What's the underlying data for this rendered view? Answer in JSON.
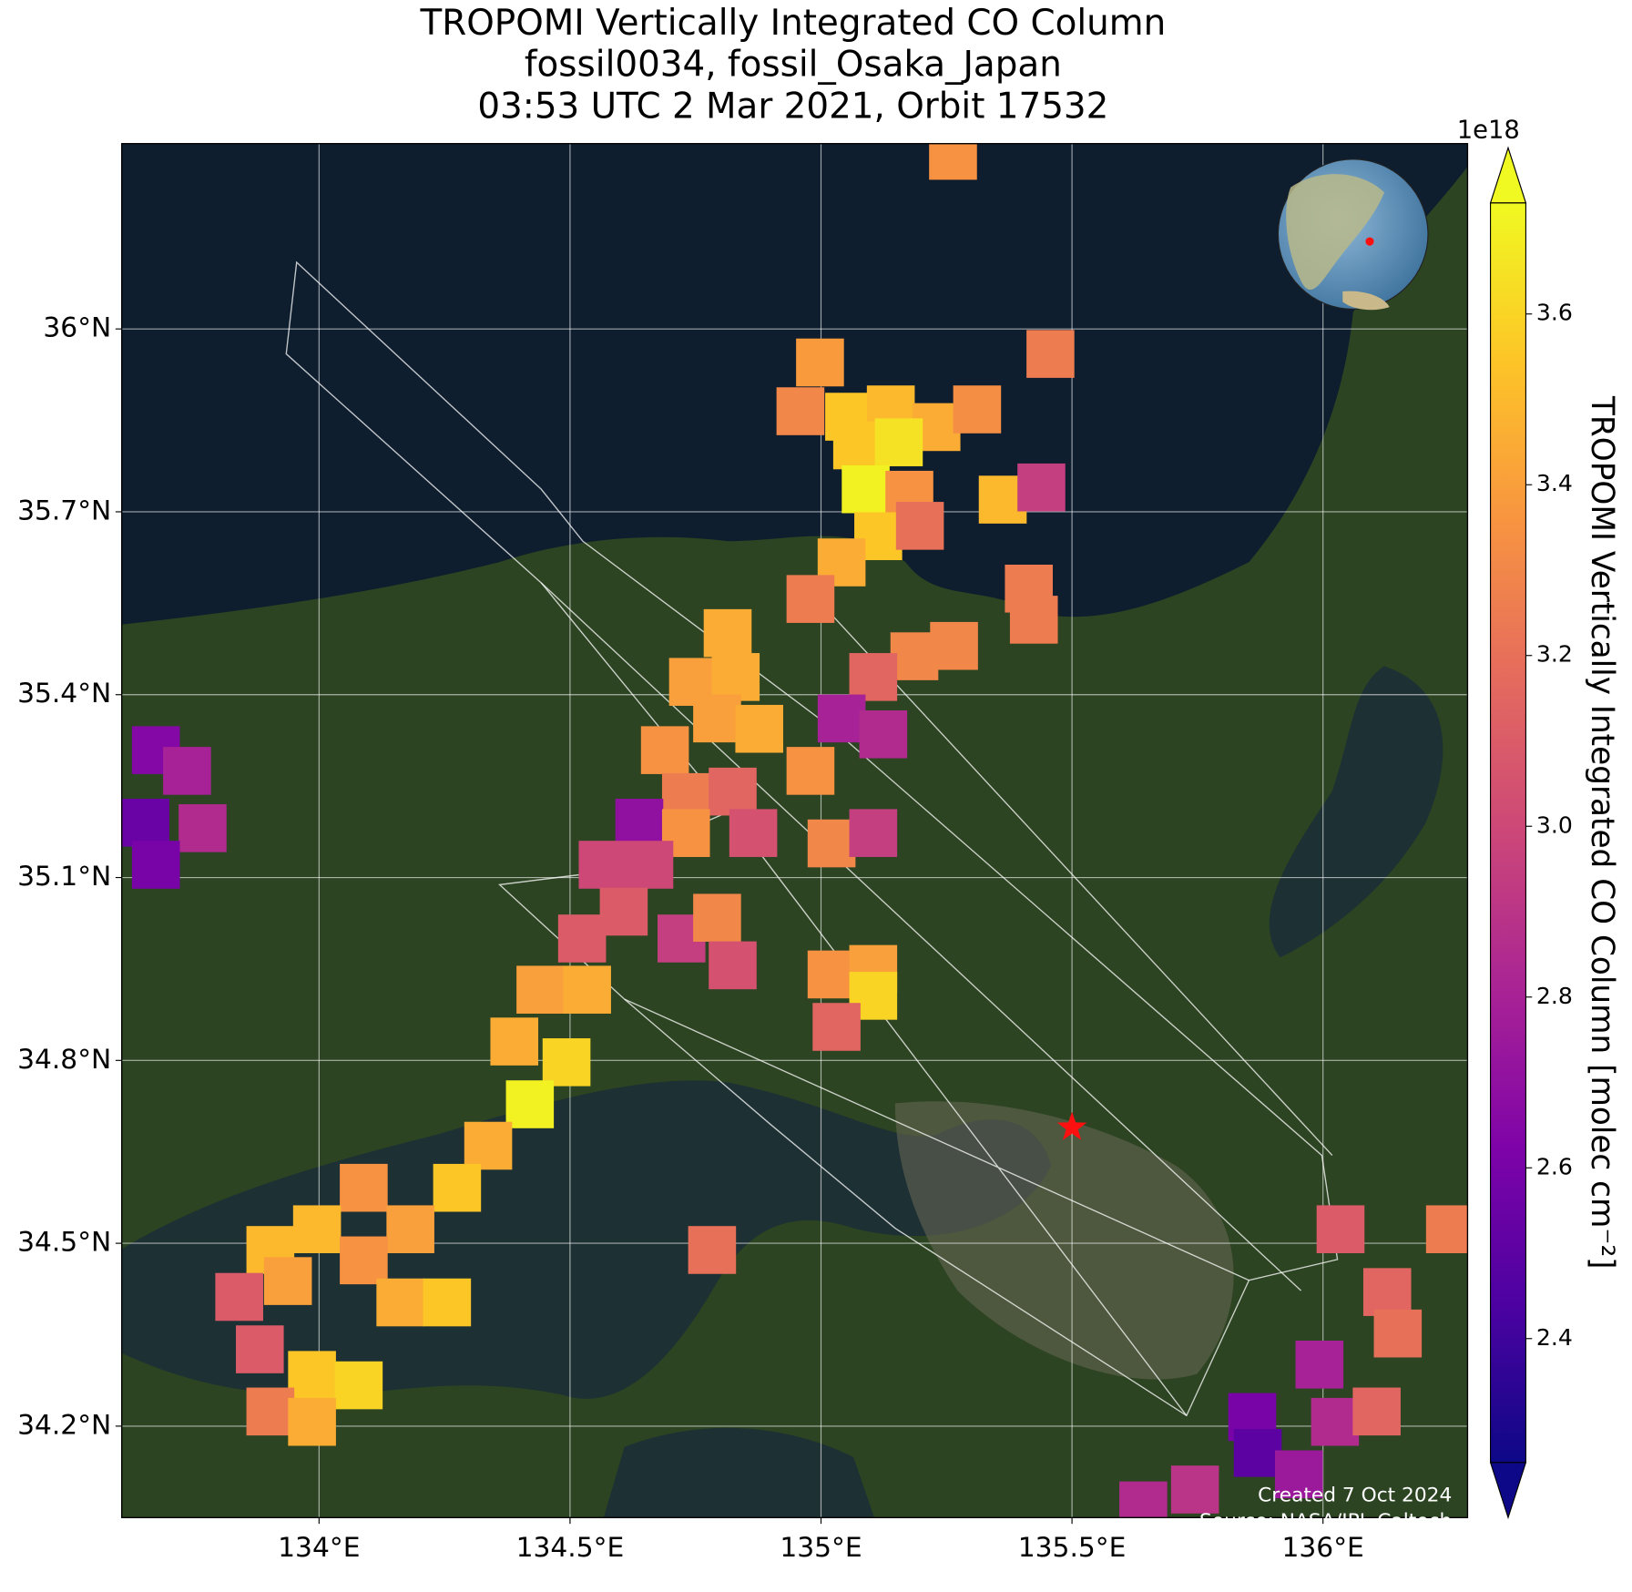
{
  "chart_data": {
    "type": "map",
    "title": [
      "TROPOMI Vertically Integrated CO Column",
      "fossil0034, fossil_Osaka_Japan",
      "03:53 UTC 2 Mar 2021, Orbit 17532"
    ],
    "xlim": [
      133.607,
      136.288
    ],
    "ylim": [
      34.05,
      36.304
    ],
    "xticks": [
      {
        "value": 134,
        "label": "134°E"
      },
      {
        "value": 134.5,
        "label": "134.5°E"
      },
      {
        "value": 135,
        "label": "135°E"
      },
      {
        "value": 135.5,
        "label": "135.5°E"
      },
      {
        "value": 136,
        "label": "136°E"
      }
    ],
    "yticks": [
      {
        "value": 34.2,
        "label": "34.2°N"
      },
      {
        "value": 34.5,
        "label": "34.5°N"
      },
      {
        "value": 34.8,
        "label": "34.8°N"
      },
      {
        "value": 35.1,
        "label": "35.1°N"
      },
      {
        "value": 35.4,
        "label": "35.4°N"
      },
      {
        "value": 35.7,
        "label": "35.7°N"
      },
      {
        "value": 36,
        "label": "36°N"
      }
    ],
    "grid": true,
    "x": [
      135.263,
      135.457,
      134.998,
      134.959,
      135.056,
      135.139,
      135.23,
      135.311,
      135.072,
      135.155,
      135.089,
      135.176,
      135.362,
      135.439,
      135.114,
      135.197,
      135.041,
      134.979,
      135.414,
      135.424,
      134.814,
      134.745,
      134.83,
      135.186,
      135.265,
      135.104,
      135.041,
      135.124,
      134.689,
      134.793,
      134.877,
      134.979,
      134.731,
      134.824,
      134.638,
      134.731,
      134.865,
      135.021,
      135.104,
      134.565,
      134.658,
      134.607,
      134.524,
      134.722,
      134.793,
      134.824,
      135.021,
      135.104,
      135.104,
      135.031,
      134.441,
      134.534,
      134.389,
      134.493,
      134.42,
      134.337,
      134.275,
      134.089,
      134.182,
      133.903,
      133.996,
      134.089,
      133.841,
      133.938,
      134.162,
      134.255,
      133.882,
      133.986,
      134.079,
      133.903,
      133.986,
      134.783,
      136.035,
      136.128,
      136.149,
      136.253,
      135.993,
      136.024,
      136.107,
      135.859,
      135.87,
      135.952,
      135.745,
      135.642,
      133.675,
      133.737,
      133.654,
      133.768,
      133.675
    ],
    "y": [
      36.284,
      35.959,
      35.945,
      35.865,
      35.856,
      35.868,
      35.839,
      35.868,
      35.809,
      35.814,
      35.737,
      35.728,
      35.72,
      35.74,
      35.66,
      35.677,
      35.617,
      35.557,
      35.574,
      35.523,
      35.501,
      35.421,
      35.429,
      35.463,
      35.48,
      35.429,
      35.361,
      35.335,
      35.309,
      35.361,
      35.344,
      35.275,
      35.232,
      35.241,
      35.19,
      35.173,
      35.173,
      35.156,
      35.173,
      35.121,
      35.121,
      35.044,
      35.0,
      35.0,
      35.034,
      34.956,
      34.941,
      34.95,
      34.906,
      34.855,
      34.916,
      34.916,
      34.831,
      34.797,
      34.728,
      34.66,
      34.591,
      34.591,
      34.523,
      34.489,
      34.523,
      34.472,
      34.412,
      34.438,
      34.403,
      34.403,
      34.326,
      34.284,
      34.267,
      34.224,
      34.207,
      34.489,
      34.523,
      34.42,
      34.352,
      34.523,
      34.301,
      34.207,
      34.224,
      34.215,
      34.156,
      34.121,
      34.096,
      34.07,
      35.309,
      35.275,
      35.19,
      35.181,
      35.121
    ],
    "values": [
      3.35,
      3.25,
      3.38,
      3.3,
      3.55,
      3.5,
      3.45,
      3.33,
      3.55,
      3.65,
      3.7,
      3.35,
      3.5,
      2.95,
      3.55,
      3.2,
      3.45,
      3.25,
      3.25,
      3.25,
      3.45,
      3.4,
      3.45,
      3.3,
      3.3,
      3.15,
      2.8,
      2.85,
      3.35,
      3.4,
      3.45,
      3.35,
      3.25,
      3.15,
      2.7,
      3.35,
      3.05,
      3.3,
      2.95,
      3.0,
      3.0,
      3.1,
      3.1,
      2.95,
      3.3,
      3.05,
      3.35,
      3.4,
      3.6,
      3.15,
      3.4,
      3.45,
      3.45,
      3.6,
      3.7,
      3.45,
      3.55,
      3.35,
      3.4,
      3.5,
      3.5,
      3.35,
      3.1,
      3.4,
      3.45,
      3.55,
      3.1,
      3.55,
      3.6,
      3.25,
      3.45,
      3.2,
      3.1,
      3.15,
      3.2,
      3.25,
      2.8,
      2.85,
      3.15,
      2.6,
      2.5,
      2.75,
      2.9,
      2.85,
      2.65,
      2.8,
      2.55,
      2.85,
      2.6
    ],
    "marker": {
      "x": 135.5,
      "y": 34.69
    },
    "colorbar": {
      "label": "TROPOMI Vertically Integrated CO Column [molec cm⁻²]",
      "offset_label": "1e18",
      "colormap": "plasma",
      "clim": [
        2.255,
        3.73
      ],
      "ticks": [
        2.4,
        2.6,
        2.8,
        {
          "value": 3.0,
          "label": "3.0"
        },
        3.2,
        3.4,
        3.6
      ]
    },
    "annotations": [
      "Created 7 Oct 2024",
      "Source: NASA/JPL-Caltech"
    ]
  }
}
